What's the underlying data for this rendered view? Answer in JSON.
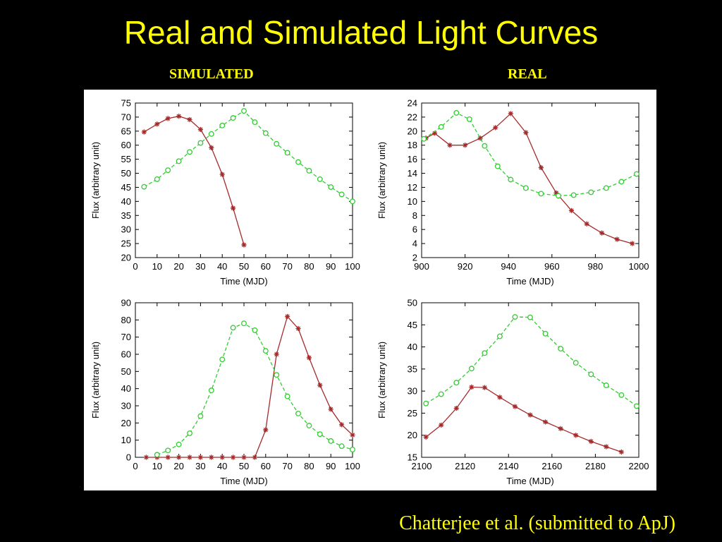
{
  "title": "Real and Simulated Light Curves",
  "headers": {
    "simulated": "SIMULATED",
    "real": "REAL"
  },
  "citation": "Chatterjee et al. (submitted to ApJ)",
  "colors": {
    "background": "#000000",
    "text": "#ffff00",
    "series_red": "#a52a2a",
    "series_green": "#33cc33"
  },
  "chart_data": [
    {
      "type": "line",
      "xlabel": "Time (MJD)",
      "ylabel": "Flux (arbitrary unit)",
      "xlim": [
        0,
        100
      ],
      "ylim": [
        20,
        75
      ],
      "xticks": [
        0,
        10,
        20,
        30,
        40,
        50,
        60,
        70,
        80,
        90,
        100
      ],
      "yticks": [
        20,
        25,
        30,
        35,
        40,
        45,
        50,
        55,
        60,
        65,
        70,
        75
      ],
      "series": [
        {
          "color": "red",
          "marker": "star",
          "dash": false,
          "x": [
            4,
            10,
            15,
            20,
            25,
            30,
            35,
            40,
            45,
            50
          ],
          "y": [
            64.7,
            67.5,
            69.5,
            70.3,
            69.1,
            65.6,
            59.1,
            49.6,
            37.6,
            24.5
          ]
        },
        {
          "color": "green",
          "marker": "circle",
          "dash": true,
          "x": [
            4,
            10,
            15,
            20,
            25,
            30,
            35,
            40,
            45,
            50,
            55,
            60,
            65,
            70,
            75,
            80,
            85,
            90,
            95,
            100
          ],
          "y": [
            45.2,
            47.9,
            51.1,
            54.3,
            57.6,
            60.8,
            64.0,
            67.0,
            69.7,
            72.2,
            68.2,
            64.3,
            60.5,
            57.3,
            54.0,
            50.9,
            47.9,
            45.1,
            42.5,
            40.0
          ]
        }
      ]
    },
    {
      "type": "line",
      "xlabel": "Time (MJD)",
      "ylabel": "Flux (arbitrary unit)",
      "xlim": [
        900,
        1000
      ],
      "ylim": [
        2,
        24
      ],
      "xticks": [
        900,
        920,
        940,
        960,
        980,
        1000
      ],
      "yticks": [
        2,
        4,
        6,
        8,
        10,
        12,
        14,
        16,
        18,
        20,
        22,
        24
      ],
      "series": [
        {
          "color": "red",
          "marker": "star",
          "dash": false,
          "x": [
            902,
            906,
            913,
            920,
            927,
            934,
            941,
            948,
            955,
            962,
            969,
            976,
            983,
            990,
            997
          ],
          "y": [
            19.0,
            19.7,
            18.0,
            18.0,
            19.0,
            20.5,
            22.5,
            19.8,
            14.8,
            11.2,
            8.7,
            6.8,
            5.5,
            4.6,
            4.0
          ]
        },
        {
          "color": "green",
          "marker": "circle",
          "dash": true,
          "x": [
            901,
            909,
            916,
            922,
            929,
            935,
            941,
            948,
            955,
            963,
            970,
            978,
            985,
            992,
            999
          ],
          "y": [
            18.9,
            20.6,
            22.6,
            21.7,
            17.9,
            15.0,
            13.1,
            11.9,
            11.1,
            10.8,
            10.9,
            11.3,
            11.9,
            12.8,
            13.9
          ]
        }
      ]
    },
    {
      "type": "line",
      "xlabel": "Time (MJD)",
      "ylabel": "Flux (arbitrary unit)",
      "xlim": [
        0,
        100
      ],
      "ylim": [
        0,
        90
      ],
      "xticks": [
        0,
        10,
        20,
        30,
        40,
        50,
        60,
        70,
        80,
        90,
        100
      ],
      "yticks": [
        0,
        10,
        20,
        30,
        40,
        50,
        60,
        70,
        80,
        90
      ],
      "series": [
        {
          "color": "red",
          "marker": "star",
          "dash": false,
          "x": [
            5,
            10,
            15,
            20,
            25,
            30,
            35,
            40,
            45,
            50,
            55,
            60,
            65,
            70,
            75,
            80,
            85,
            90,
            95,
            100
          ],
          "y": [
            0,
            0,
            0,
            0,
            0,
            0,
            0,
            0,
            0,
            0,
            0,
            16,
            60,
            82,
            75,
            58,
            42,
            28,
            19,
            13
          ]
        },
        {
          "color": "green",
          "marker": "circle",
          "dash": true,
          "x": [
            10,
            15,
            20,
            25,
            30,
            35,
            40,
            45,
            50,
            55,
            60,
            65,
            70,
            75,
            80,
            85,
            90,
            95,
            100
          ],
          "y": [
            1.5,
            4,
            7.5,
            14,
            24,
            39,
            57,
            75.5,
            78,
            74,
            62,
            48,
            35.5,
            25.5,
            18.5,
            13.5,
            9.5,
            6.5,
            4.5
          ]
        }
      ]
    },
    {
      "type": "line",
      "xlabel": "Time (MJD)",
      "ylabel": "Flux (arbitrary unit)",
      "xlim": [
        2100,
        2200
      ],
      "ylim": [
        15,
        50
      ],
      "xticks": [
        2100,
        2120,
        2140,
        2160,
        2180,
        2200
      ],
      "yticks": [
        15,
        20,
        25,
        30,
        35,
        40,
        45,
        50
      ],
      "series": [
        {
          "color": "red",
          "marker": "star",
          "dash": false,
          "x": [
            2102,
            2109,
            2116,
            2123,
            2129,
            2136,
            2143,
            2150,
            2157,
            2164,
            2171,
            2178,
            2185,
            2192
          ],
          "y": [
            19.6,
            22.3,
            26.1,
            30.9,
            30.8,
            28.6,
            26.5,
            24.6,
            23.0,
            21.5,
            20.0,
            18.6,
            17.4,
            16.2
          ]
        },
        {
          "color": "green",
          "marker": "circle",
          "dash": true,
          "x": [
            2102,
            2109,
            2116,
            2123,
            2129,
            2136,
            2143,
            2150,
            2157,
            2164,
            2171,
            2178,
            2185,
            2192,
            2199
          ],
          "y": [
            27.2,
            29.3,
            31.9,
            35.1,
            38.6,
            42.4,
            46.8,
            46.7,
            43.0,
            39.6,
            36.4,
            33.8,
            31.3,
            29.1,
            26.6
          ]
        }
      ]
    }
  ]
}
